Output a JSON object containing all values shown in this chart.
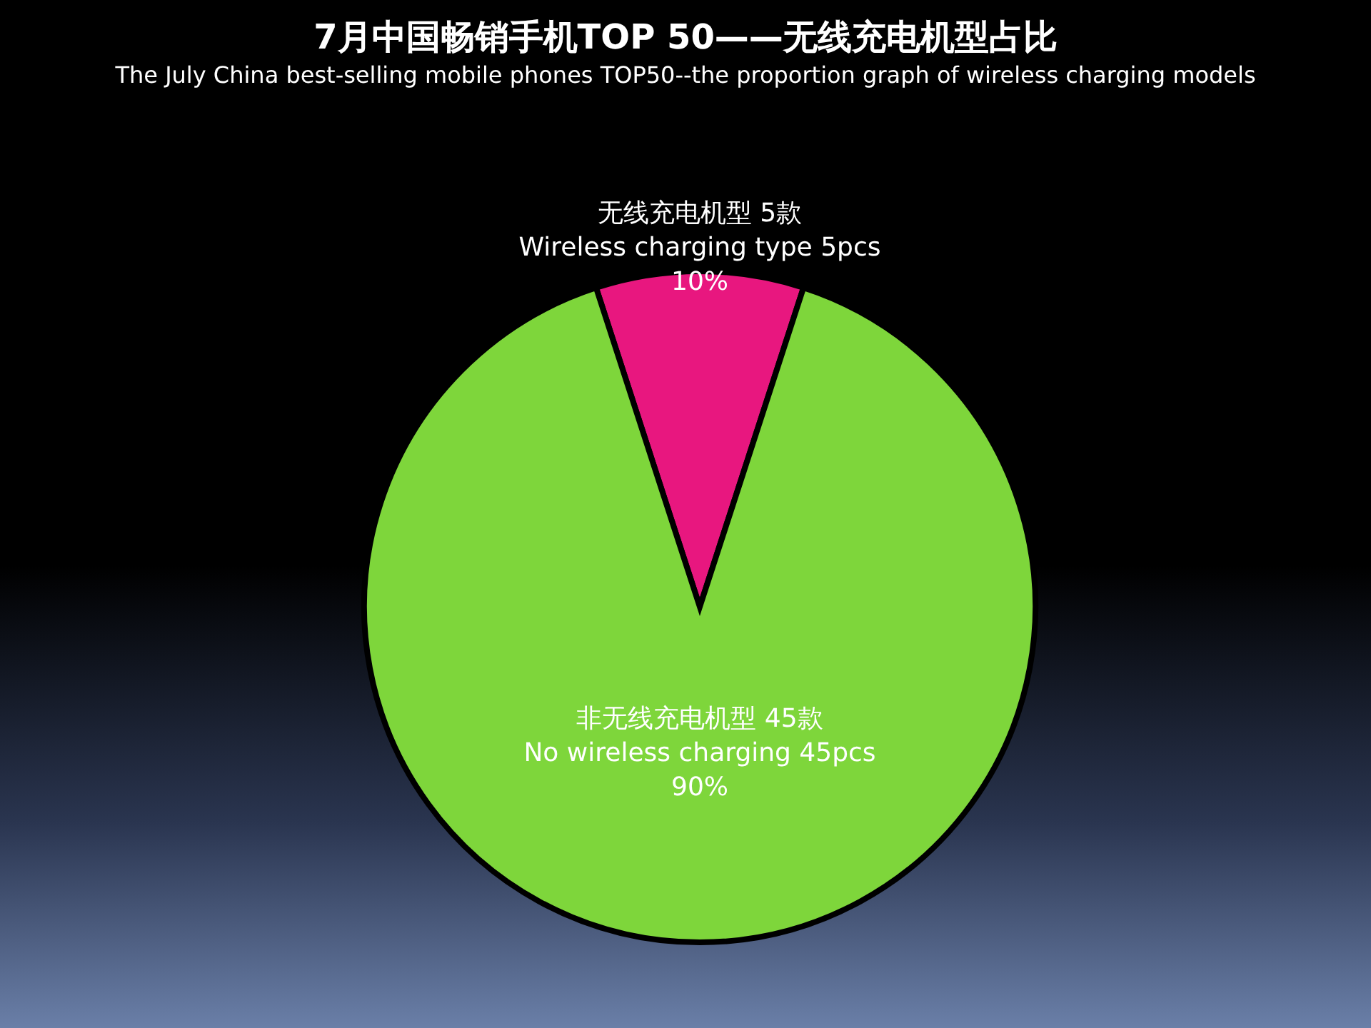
{
  "chart_data": {
    "type": "pie",
    "title": "7月中国畅销手机TOP 50——无线充电机型占比",
    "subtitle": "The July China best-selling mobile phones TOP50--the proportion graph of wireless charging models",
    "categories": [
      "无线充电机型 5款",
      "非无线充电机型 45款"
    ],
    "values": [
      10,
      90
    ],
    "colors": [
      "#e8177f",
      "#7ed63b"
    ],
    "value_labels": [
      "10%",
      "90%"
    ],
    "annotations": [
      "Wireless charging type 5pcs",
      "No wireless charging 45pcs"
    ],
    "legend": false
  }
}
